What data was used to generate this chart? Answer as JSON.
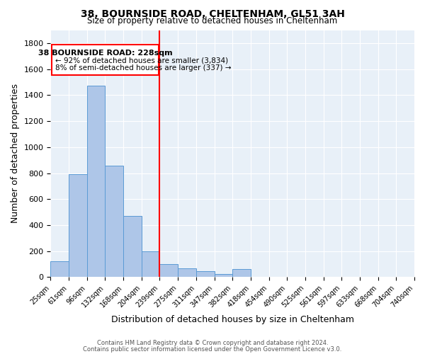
{
  "title1": "38, BOURNSIDE ROAD, CHELTENHAM, GL51 3AH",
  "title2": "Size of property relative to detached houses in Cheltenham",
  "xlabel": "Distribution of detached houses by size in Cheltenham",
  "ylabel": "Number of detached properties",
  "bin_labels": [
    "25sqm",
    "61sqm",
    "96sqm",
    "132sqm",
    "168sqm",
    "204sqm",
    "239sqm",
    "275sqm",
    "311sqm",
    "347sqm",
    "382sqm",
    "418sqm",
    "454sqm",
    "490sqm",
    "525sqm",
    "561sqm",
    "597sqm",
    "633sqm",
    "668sqm",
    "704sqm",
    "740sqm"
  ],
  "bar_heights": [
    120,
    790,
    1470,
    860,
    470,
    200,
    100,
    70,
    45,
    25,
    60,
    0,
    0,
    0,
    0,
    0,
    0,
    0,
    0,
    0
  ],
  "bar_color": "#aec6e8",
  "bar_edge_color": "#5b9bd5",
  "bg_color": "#e8f0f8",
  "grid_color": "#c8d8e8",
  "red_line_x": 6,
  "annotation_line1": "38 BOURNSIDE ROAD: 228sqm",
  "annotation_line2": "← 92% of detached houses are smaller (3,834)",
  "annotation_line3": "8% of semi-detached houses are larger (337) →",
  "footer1": "Contains HM Land Registry data © Crown copyright and database right 2024.",
  "footer2": "Contains public sector information licensed under the Open Government Licence v3.0.",
  "ylim": [
    0,
    1900
  ],
  "yticks": [
    0,
    200,
    400,
    600,
    800,
    1000,
    1200,
    1400,
    1600,
    1800
  ]
}
